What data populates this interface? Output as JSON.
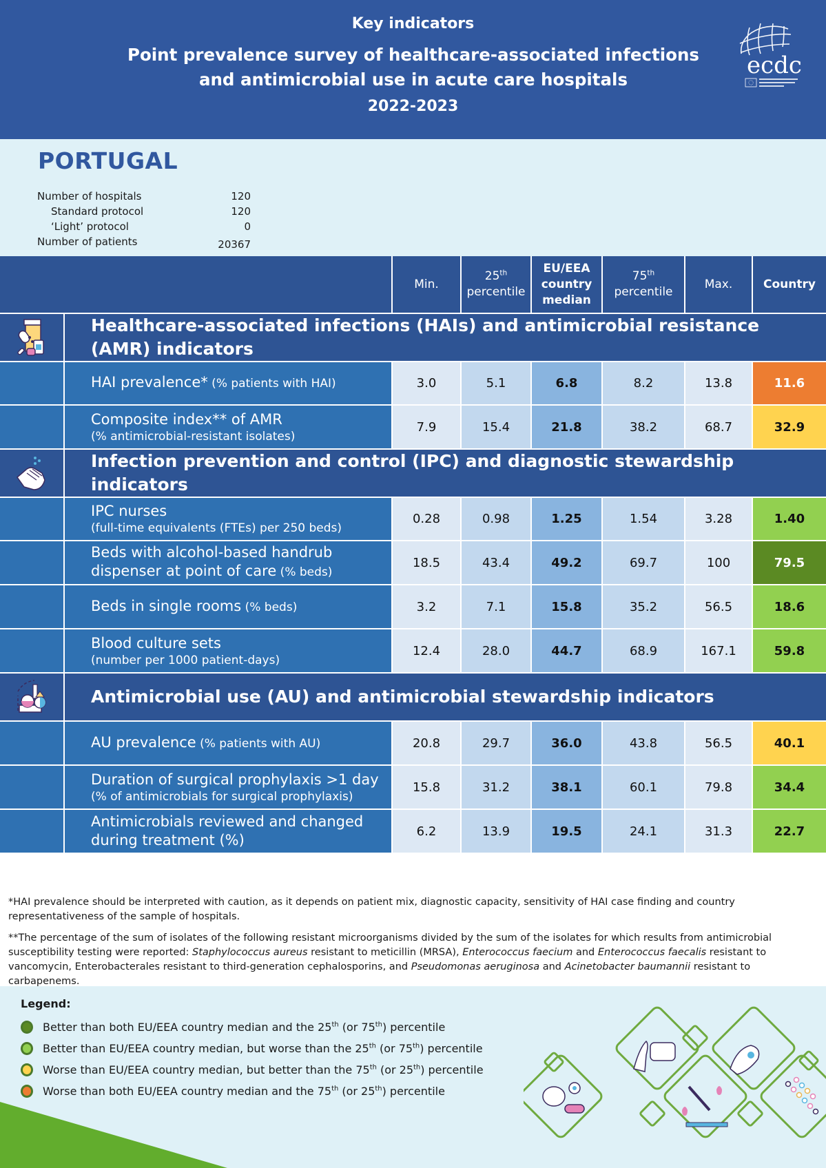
{
  "header": {
    "kicker": "Key indicators",
    "title_line1": "Point prevalence survey of healthcare-associated infections",
    "title_line2": "and antimicrobial use in acute care hospitals",
    "years": "2022-2023",
    "logo_text": "ecdc",
    "logo_subtext": "EUROPEAN CENTRE FOR DISEASE PREVENTION AND CONTROL"
  },
  "country": {
    "name": "PORTUGAL",
    "stats": [
      {
        "label": "Number of hospitals",
        "value": "120"
      },
      {
        "label": "Standard protocol",
        "value": "120"
      },
      {
        "label": "‘Light’ protocol",
        "value": "0"
      },
      {
        "label": "Number of patients",
        "value": "20367"
      }
    ]
  },
  "table": {
    "columns": {
      "min": "Min.",
      "p25_num": "25",
      "p25_sup": "th",
      "p25_word": "percentile",
      "median_l1": "EU/EEA",
      "median_l2": "country",
      "median_l3": "median",
      "p75_num": "75",
      "p75_sup": "th",
      "p75_word": "percentile",
      "max": "Max.",
      "country": "Country"
    },
    "sections": [
      {
        "title": "Healthcare-associated infections (HAIs) and antimicrobial resistance (AMR) indicators",
        "icon": "medicine-bottles-icon",
        "rows": [
          {
            "label": "HAI prevalence*",
            "label_small": " (% patients with HAI)",
            "sub": "",
            "min": "3.0",
            "p25": "5.1",
            "median": "6.8",
            "p75": "8.2",
            "max": "13.8",
            "country": "11.6",
            "status": "worse-both",
            "color": "#ed7d31"
          },
          {
            "label": "Composite index** of AMR",
            "label_small": "",
            "sub": "(% antimicrobial-resistant isolates)",
            "min": "7.9",
            "p25": "15.4",
            "median": "21.8",
            "p75": "38.2",
            "max": "68.7",
            "country": "32.9",
            "status": "worse-median",
            "color": "#ffd34f"
          }
        ]
      },
      {
        "title": "Infection prevention and control (IPC) and diagnostic stewardship indicators",
        "icon": "handwashing-icon",
        "rows": [
          {
            "label": "IPC nurses",
            "label_small": "",
            "sub": "(full-time equivalents (FTEs) per 250 beds)",
            "min": "0.28",
            "p25": "0.98",
            "median": "1.25",
            "p75": "1.54",
            "max": "3.28",
            "country": "1.40",
            "status": "better-median",
            "color": "#92d050"
          },
          {
            "label": "Beds with alcohol-based handrub",
            "label2": "dispenser at point of care",
            "label_small": " (% beds)",
            "sub": "",
            "min": "18.5",
            "p25": "43.4",
            "median": "49.2",
            "p75": "69.7",
            "max": "100",
            "country": "79.5",
            "status": "better-both",
            "color": "#5b8a23"
          },
          {
            "label": "Beds in single rooms",
            "label_small": " (% beds)",
            "sub": "",
            "min": "3.2",
            "p25": "7.1",
            "median": "15.8",
            "p75": "35.2",
            "max": "56.5",
            "country": "18.6",
            "status": "better-median",
            "color": "#92d050"
          },
          {
            "label": "Blood culture sets",
            "label_small": "",
            "sub": "(number per 1000 patient-days)",
            "min": "12.4",
            "p25": "28.0",
            "median": "44.7",
            "p75": "68.9",
            "max": "167.1",
            "country": "59.8",
            "status": "better-median",
            "color": "#92d050"
          }
        ]
      },
      {
        "title": "Antimicrobial use (AU) and antimicrobial stewardship indicators",
        "icon": "antimicrobial-chart-icon",
        "rows": [
          {
            "label": "AU prevalence",
            "label_small": " (% patients with AU)",
            "sub": "",
            "min": "20.8",
            "p25": "29.7",
            "median": "36.0",
            "p75": "43.8",
            "max": "56.5",
            "country": "40.1",
            "status": "worse-median",
            "color": "#ffd34f"
          },
          {
            "label": "Duration of surgical prophylaxis >1 day",
            "label_small": "",
            "sub": "(% of antimicrobials for surgical prophylaxis)",
            "min": "15.8",
            "p25": "31.2",
            "median": "38.1",
            "p75": "60.1",
            "max": "79.8",
            "country": "34.4",
            "status": "better-median",
            "color": "#92d050"
          },
          {
            "label": "Antimicrobials reviewed and changed",
            "label2": "during treatment (%)",
            "label_small": "",
            "sub": "",
            "min": "6.2",
            "p25": "13.9",
            "median": "19.5",
            "p75": "24.1",
            "max": "31.3",
            "country": "22.7",
            "status": "better-median",
            "color": "#92d050"
          }
        ]
      }
    ]
  },
  "footnotes": {
    "note1": "*HAI prevalence should be interpreted with caution, as it depends on patient mix, diagnostic capacity, sensitivity of HAI case finding and country representativeness of the sample of hospitals.",
    "note2_a": "**The percentage of the sum of isolates of the following resistant microorganisms divided by the sum of the isolates for which results from antimicrobial susceptibility testing were reported: ",
    "note2_sa": "Staphylococcus aureus",
    "note2_b": " resistant to meticillin (MRSA), ",
    "note2_efm": "Enterococcus faecium",
    "note2_c": " and ",
    "note2_efs": "Enterococcus faecalis",
    "note2_d": " resistant to vancomycin, Enterobacterales resistant to third-generation cephalosporins, and ",
    "note2_pa": "Pseudomonas aeruginosa",
    "note2_e": " and ",
    "note2_ab": "Acinetobacter baumannii",
    "note2_f": " resistant to carbapenems."
  },
  "legend": {
    "title": "Legend:",
    "items": [
      {
        "color": "#5b8a23",
        "text_a": "Better than both EU/EEA country median and the 25",
        "sup1": "th",
        "text_b": " (or 75",
        "sup2": "th",
        "text_c": ") percentile"
      },
      {
        "color": "#92d050",
        "text_a": "Better than EU/EEA country median, but worse than the 25",
        "sup1": "th",
        "text_b": " (or 75",
        "sup2": "th",
        "text_c": ") percentile"
      },
      {
        "color": "#ffd34f",
        "text_a": "Worse than EU/EEA country median, but better than the 75",
        "sup1": "th",
        "text_b": " (or 25",
        "sup2": "th",
        "text_c": ") percentile"
      },
      {
        "color": "#ed7d31",
        "text_a": "Worse than both EU/EEA country median and the 75",
        "sup1": "th",
        "text_b": " (or 25",
        "sup2": "th",
        "text_c": ") percentile"
      }
    ]
  }
}
